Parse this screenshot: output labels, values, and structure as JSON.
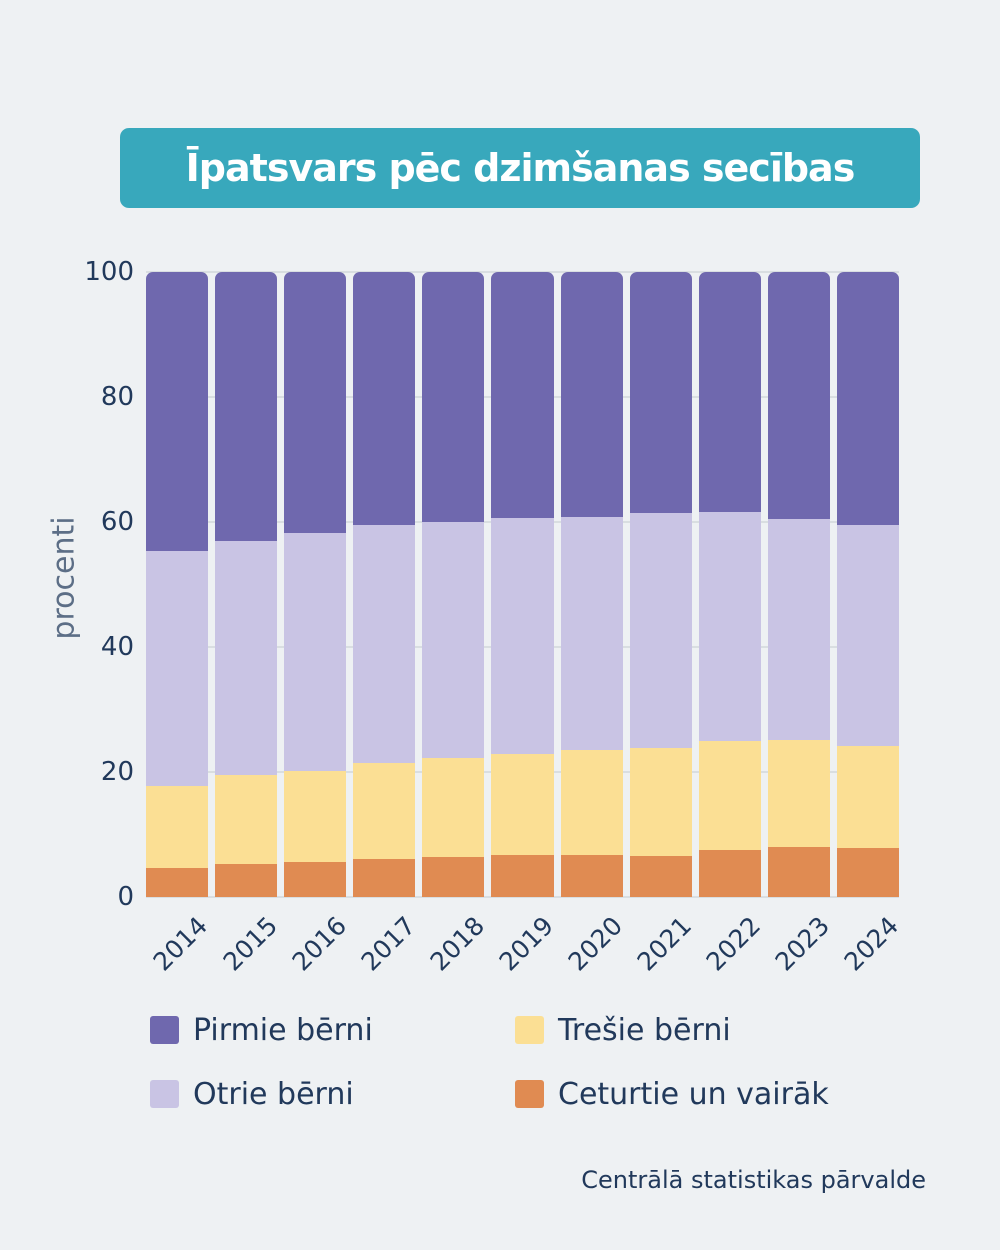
{
  "title": "Īpatsvars pēc dzimšanas secības",
  "source": "Centrālā statistikas pārvalde",
  "colors": {
    "background": "#eef1f3",
    "banner": "#38a8bc",
    "title_text": "#ffffff",
    "axis_text": "#21395b",
    "axis_title_text": "#5c6e86",
    "gridline": "#d9dee1"
  },
  "chart_data": {
    "type": "bar",
    "stacked": true,
    "title": "Īpatsvars pēc dzimšanas secības",
    "ylabel": "procenti",
    "xlabel": "",
    "ylim": [
      0,
      100
    ],
    "yticks": [
      0,
      20,
      40,
      60,
      80,
      100
    ],
    "grid": true,
    "legend_position": "bottom",
    "categories": [
      "2014",
      "2015",
      "2016",
      "2017",
      "2018",
      "2019",
      "2020",
      "2021",
      "2022",
      "2023",
      "2024"
    ],
    "series": [
      {
        "name": "Pirmie bērni",
        "color": "#6f68ae",
        "values": [
          44.6,
          43.1,
          41.7,
          40.5,
          40.0,
          39.4,
          39.2,
          38.6,
          38.4,
          39.5,
          40.4
        ]
      },
      {
        "name": "Otrie bērni",
        "color": "#c9c4e4",
        "values": [
          37.6,
          37.4,
          38.2,
          38.0,
          37.8,
          37.7,
          37.2,
          37.6,
          36.7,
          35.4,
          35.4
        ]
      },
      {
        "name": "Trešie bērni",
        "color": "#fbdf94",
        "values": [
          13.2,
          14.2,
          14.5,
          15.4,
          15.8,
          16.2,
          16.8,
          17.2,
          17.3,
          17.1,
          16.4
        ]
      },
      {
        "name": "Ceturtie un vairāk",
        "color": "#e08b52",
        "values": [
          4.6,
          5.3,
          5.6,
          6.1,
          6.4,
          6.7,
          6.8,
          6.6,
          7.6,
          8.0,
          7.8
        ]
      }
    ],
    "stack_order_bottom_to_top": [
      "Ceturtie un vairāk",
      "Trešie bērni",
      "Otrie bērni",
      "Pirmie bērni"
    ]
  }
}
